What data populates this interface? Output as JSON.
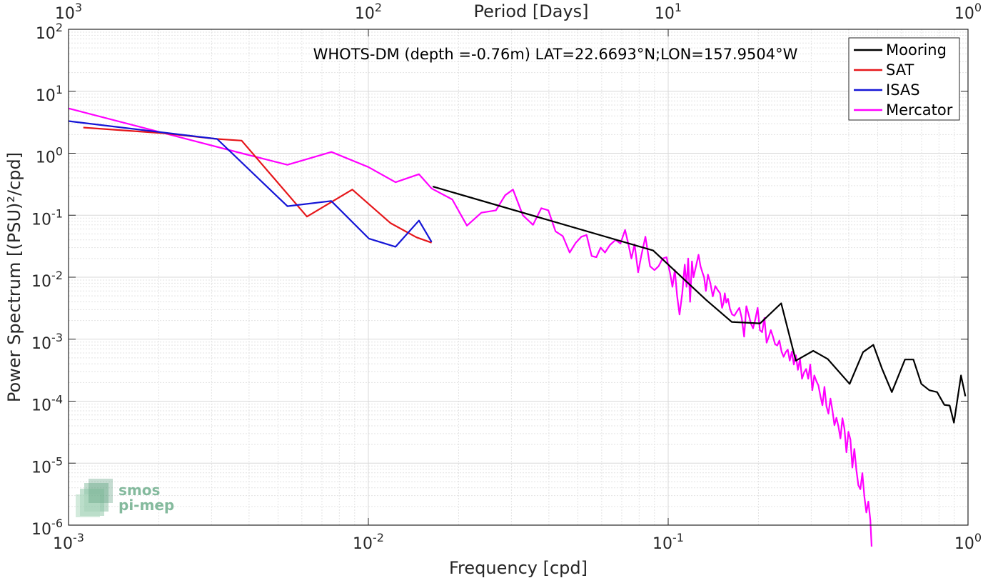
{
  "chart_data": {
    "type": "line",
    "title": "WHOTS-DM (depth =-0.76m) LAT=22.6693°N;LON=157.9504°W",
    "xlabel": "Frequency [cpd]",
    "ylabel": "Power Spectrum [(PSU)²/cpd]",
    "x2label": "Period [Days]",
    "xscale": "log",
    "yscale": "log",
    "xlim": [
      0.001,
      1
    ],
    "ylim": [
      1e-06,
      100
    ],
    "grid": true,
    "legend_position": "top-right",
    "x_ticks": [
      {
        "value": 0.001,
        "base": "10",
        "exp": "-3"
      },
      {
        "value": 0.01,
        "base": "10",
        "exp": "-2"
      },
      {
        "value": 0.1,
        "base": "10",
        "exp": "-1"
      },
      {
        "value": 1,
        "base": "10",
        "exp": "0"
      }
    ],
    "x2_ticks": [
      {
        "value": 0.001,
        "base": "10",
        "exp": "3"
      },
      {
        "value": 0.01,
        "base": "10",
        "exp": "2"
      },
      {
        "value": 0.1,
        "base": "10",
        "exp": "1"
      },
      {
        "value": 1,
        "base": "10",
        "exp": "0"
      }
    ],
    "y_ticks": [
      {
        "value": 100,
        "base": "10",
        "exp": "2"
      },
      {
        "value": 10,
        "base": "10",
        "exp": "1"
      },
      {
        "value": 1,
        "base": "10",
        "exp": "0"
      },
      {
        "value": 0.1,
        "base": "10",
        "exp": "-1"
      },
      {
        "value": 0.01,
        "base": "10",
        "exp": "-2"
      },
      {
        "value": 0.001,
        "base": "10",
        "exp": "-3"
      },
      {
        "value": 0.0001,
        "base": "10",
        "exp": "-4"
      },
      {
        "value": 1e-05,
        "base": "10",
        "exp": "-5"
      },
      {
        "value": 1e-06,
        "base": "10",
        "exp": "-6"
      }
    ],
    "series": [
      {
        "name": "Mooring",
        "color": "#000000",
        "x": [
          0.0164,
          0.0891,
          0.1339,
          0.1629,
          0.2026,
          0.2382,
          0.2665,
          0.3047,
          0.3403,
          0.4029,
          0.4466,
          0.4835,
          0.5161,
          0.5571,
          0.6163,
          0.6573,
          0.6986,
          0.7431,
          0.7887,
          0.8339,
          0.8687,
          0.8975,
          0.9475,
          0.9799
        ],
        "y": [
          0.29,
          0.027,
          0.0043,
          0.0019,
          0.0018,
          0.0038,
          0.00045,
          0.00065,
          0.00048,
          0.00019,
          0.00062,
          0.00081,
          0.00034,
          0.00014,
          0.00047,
          0.00047,
          0.00019,
          0.00015,
          0.00014,
          8.7e-05,
          8.5e-05,
          4.5e-05,
          0.00026,
          0.00012
        ]
      },
      {
        "name": "SAT",
        "color": "#e6161a",
        "x": [
          0.00112,
          0.00208,
          0.00313,
          0.00378,
          0.00624,
          0.00884,
          0.01184,
          0.01447,
          0.01625
        ],
        "y": [
          2.6,
          2.1,
          1.7,
          1.6,
          0.095,
          0.26,
          0.075,
          0.044,
          0.036
        ]
      },
      {
        "name": "ISAS",
        "color": "#1515d6",
        "x": [
          0.001,
          0.00313,
          0.00537,
          0.00752,
          0.01004,
          0.01232,
          0.01475,
          0.01625
        ],
        "y": [
          3.3,
          1.7,
          0.14,
          0.17,
          0.042,
          0.031,
          0.082,
          0.037
        ]
      },
      {
        "name": "Mercator",
        "color": "#ff00ff",
        "x": [
          0.001,
          0.00378,
          0.00537,
          0.00753,
          0.00999,
          0.01232,
          0.01475,
          0.01625,
          0.01904,
          0.02132,
          0.02382,
          0.02664,
          0.02859,
          0.03037,
          0.03276,
          0.0354,
          0.03774,
          0.03984,
          0.04211,
          0.04453,
          0.04692,
          0.0492,
          0.05138,
          0.05343,
          0.05557,
          0.05761,
          0.05953,
          0.06156,
          0.06389,
          0.06671,
          0.06935,
          0.07183,
          0.07376,
          0.07542,
          0.07726,
          0.07938,
          0.08148,
          0.08396,
          0.08701,
          0.08999,
          0.09286,
          0.09574,
          0.09872,
          0.10134,
          0.10333,
          0.10521,
          0.1071,
          0.10912,
          0.11138,
          0.11354,
          0.11516,
          0.11661,
          0.11831,
          0.12002,
          0.12149,
          0.12298,
          0.12454,
          0.12627,
          0.12817,
          0.13001,
          0.13175,
          0.13359,
          0.13573,
          0.13817,
          0.14087,
          0.14361,
          0.14632,
          0.14895,
          0.15124,
          0.15303,
          0.15447,
          0.15616,
          0.15829,
          0.16071,
          0.16342,
          0.16632,
          0.16943,
          0.17269,
          0.17591,
          0.17915,
          0.18228,
          0.18547,
          0.18867,
          0.19192,
          0.19535,
          0.19881,
          0.20227,
          0.20572,
          0.20937,
          0.21301,
          0.21657,
          0.22003,
          0.22368,
          0.22733,
          0.23115,
          0.23497,
          0.23888,
          0.24271,
          0.24662,
          0.25053,
          0.25444,
          0.25844,
          0.26245,
          0.26655,
          0.27075,
          0.27513,
          0.27951,
          0.28389,
          0.28846,
          0.29312,
          0.29779,
          0.30244,
          0.30719,
          0.31203,
          0.31693,
          0.32192,
          0.32691,
          0.33209,
          0.33717,
          0.34244,
          0.34771,
          0.35307,
          0.35852,
          0.36407,
          0.36971,
          0.37544,
          0.38118,
          0.38711,
          0.39302,
          0.39912,
          0.40532,
          0.41151,
          0.41788,
          0.42435,
          0.43091,
          0.43756,
          0.44432,
          0.45117,
          0.45812,
          0.46516,
          0.47238,
          0.47712
        ],
        "y": [
          5.3,
          1.0,
          0.65,
          1.05,
          0.6,
          0.34,
          0.46,
          0.27,
          0.18,
          0.068,
          0.11,
          0.12,
          0.21,
          0.26,
          0.1,
          0.07,
          0.13,
          0.12,
          0.055,
          0.046,
          0.025,
          0.036,
          0.045,
          0.048,
          0.022,
          0.021,
          0.03,
          0.025,
          0.033,
          0.04,
          0.035,
          0.058,
          0.033,
          0.02,
          0.034,
          0.012,
          0.023,
          0.045,
          0.015,
          0.013,
          0.015,
          0.02,
          0.021,
          0.012,
          0.007,
          0.013,
          0.005,
          0.0025,
          0.0055,
          0.016,
          0.007,
          0.02,
          0.004,
          0.018,
          0.01,
          0.013,
          0.017,
          0.023,
          0.015,
          0.012,
          0.01,
          0.006,
          0.011,
          0.0081,
          0.0049,
          0.0072,
          0.0062,
          0.0055,
          0.0032,
          0.0039,
          0.0055,
          0.0039,
          0.0045,
          0.0031,
          0.0025,
          0.0024,
          0.0028,
          0.0032,
          0.0022,
          0.0011,
          0.0034,
          0.0025,
          0.0018,
          0.0015,
          0.0021,
          0.0032,
          0.0014,
          0.0013,
          0.0022,
          0.00088,
          0.0011,
          0.0014,
          0.0011,
          0.00083,
          0.00079,
          0.00095,
          0.00063,
          0.00052,
          0.00062,
          0.00068,
          0.00045,
          0.00063,
          0.00039,
          0.00055,
          0.00032,
          0.00048,
          0.00023,
          0.00029,
          0.00033,
          0.00023,
          0.00039,
          0.00015,
          0.00026,
          0.00021,
          0.00018,
          0.00012,
          8.6e-05,
          0.00017,
          8.3e-05,
          6.3e-05,
          0.00011,
          7.1e-05,
          4.1e-05,
          5.4e-05,
          3.9e-05,
          2.5e-05,
          5.3e-05,
          3.6e-05,
          1.5e-05,
          3.2e-05,
          2.4e-05,
          8.5e-06,
          1.7e-05,
          7.8e-06,
          4.4e-06,
          3.8e-06,
          6.9e-06,
          2.9e-06,
          1.6e-06,
          2.4e-06,
          1.2e-06,
          4.5e-07
        ]
      }
    ]
  },
  "logo": {
    "line1": "smos",
    "line2": "pi-mep",
    "color": "#7fbf9d"
  }
}
